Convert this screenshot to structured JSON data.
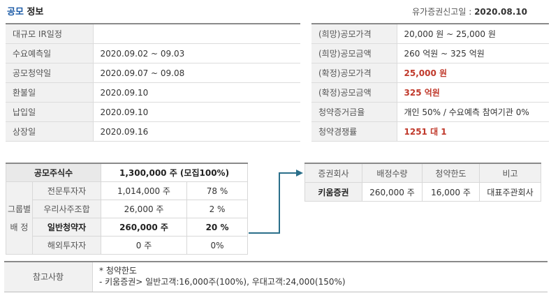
{
  "header": {
    "title_part1": "공모",
    "title_part2": " 정보",
    "filing_label": "유가증권신고일 :",
    "filing_date": "2020.08.10",
    "accent": "#1a5aa6"
  },
  "schedule": [
    {
      "label": "대규모 IR일정",
      "value": ""
    },
    {
      "label": "수요예측일",
      "value": "2020.09.02 ~ 09.03"
    },
    {
      "label": "공모청약일",
      "value": "2020.09.07 ~ 09.08"
    },
    {
      "label": "환불일",
      "value": "2020.09.10"
    },
    {
      "label": "납입일",
      "value": "2020.09.10"
    },
    {
      "label": "상장일",
      "value": "2020.09.16"
    }
  ],
  "pricing": [
    {
      "label": "(희망)공모가격",
      "value": "20,000 원 ~ 25,000 원",
      "highlight": false
    },
    {
      "label": "(희망)공모금액",
      "value": "260 억원  ~ 325 억원",
      "highlight": false
    },
    {
      "label": "(확정)공모가격",
      "value": "25,000 원",
      "highlight": true
    },
    {
      "label": "(확정)공모금액",
      "value": "325 억원",
      "highlight": true
    },
    {
      "label": "청약증거금율",
      "value": "개인 50% / 수요예측 참여기관 0%",
      "highlight": false
    },
    {
      "label": "청약경쟁률",
      "value": "1251 대 1",
      "highlight": true
    }
  ],
  "allocation": {
    "total_label": "공모주식수",
    "total_value": "1,300,000  주 (모집100%)",
    "group_label_1": "그룹별",
    "group_label_2": "배  정",
    "rows": [
      {
        "name": "전문투자자",
        "shares": "1,014,000 주",
        "pct": "78 %",
        "bold": false
      },
      {
        "name": "우리사주조합",
        "shares": "26,000 주",
        "pct": "2 %",
        "bold": false
      },
      {
        "name": "일반청약자",
        "shares": "260,000  주",
        "pct": "20 %",
        "bold": true
      },
      {
        "name": "해외투자자",
        "shares": "0 주",
        "pct": "0%",
        "bold": false
      }
    ]
  },
  "underwriters": {
    "headers": [
      "증권회사",
      "배정수량",
      "청약한도",
      "비고"
    ],
    "rows": [
      {
        "company": "키움증권",
        "quantity": "260,000 주",
        "limit": "16,000 주",
        "note": "대표주관회사"
      }
    ]
  },
  "notes": {
    "label": "참고사항",
    "line1": "* 청약한도",
    "line2": "- 키움증권> 일반고객:16,000주(100%), 우대고객:24,000(150%)"
  },
  "colors": {
    "arrow": "#2a6f8a",
    "highlight": "#c0392b"
  }
}
